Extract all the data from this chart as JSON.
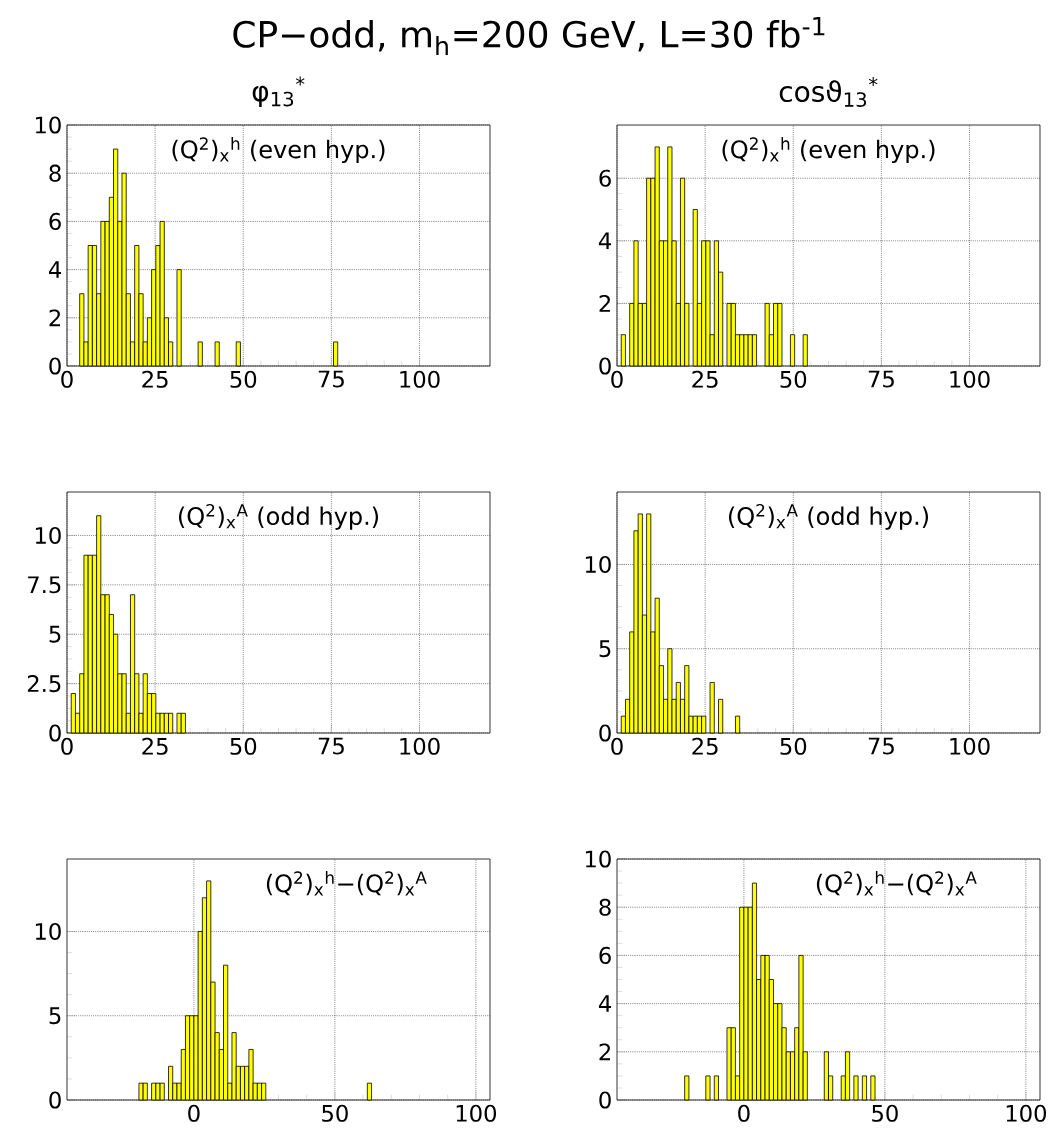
{
  "chart_data": [
    {
      "type": "histogram",
      "title": "CP−odd, m$_{h}$=200 GeV, L=30 fb$^{-1}$",
      "subtitle": "φ$_{13}$$^{*}$",
      "annotations": [
        "(Q$^{2}$)$_{x}$$^{h}$ (even hyp.)"
      ],
      "color": "#ffff00",
      "grid": true,
      "bins": [
        0,
        1.2,
        2.4,
        3.6,
        4.8,
        6,
        7.2,
        8.4,
        9.6,
        10.8,
        12,
        13.2,
        14.4,
        15.6,
        16.8,
        18,
        19.2,
        20.4,
        21.6,
        22.8,
        24,
        25.2,
        26.4,
        27.6,
        28.8,
        30,
        31.2,
        32.4,
        33.6,
        34.8,
        36,
        37.2,
        38.4,
        39.6,
        40.8,
        42,
        43.2,
        44.4,
        45.6,
        46.8,
        48,
        49.2,
        50.4,
        51.6,
        52.8,
        54,
        55.2,
        56.4,
        57.6,
        58.8,
        60,
        61.2,
        62.4,
        63.6,
        64.8,
        66,
        67.2,
        68.4,
        69.6,
        70.8,
        72,
        73.2,
        74.4,
        75.6,
        76.8
      ],
      "values": [
        0,
        0,
        0,
        3,
        1,
        5,
        5,
        3,
        6,
        6,
        7,
        9,
        6,
        8,
        3,
        1,
        5,
        3,
        1,
        2,
        4,
        5,
        6,
        2,
        1,
        0,
        4,
        0,
        0,
        0,
        0,
        1,
        0,
        0,
        0,
        1,
        0,
        0,
        0,
        0,
        1,
        0,
        0,
        0,
        0,
        0,
        0,
        0,
        0,
        0,
        0,
        0,
        0,
        0,
        0,
        0,
        0,
        0,
        0,
        0,
        0,
        0,
        0,
        1
      ],
      "xlim": [
        0,
        120
      ],
      "ylim": [
        0,
        10
      ],
      "xticks": [
        0,
        25,
        50,
        75,
        100
      ],
      "yticks": [
        0,
        2,
        4,
        6,
        8,
        10
      ]
    },
    {
      "type": "histogram",
      "subtitle": "cosϑ$_{13}$$^{*}$",
      "annotations": [
        "(Q$^{2}$)$_{x}$$^{h}$ (even hyp.)"
      ],
      "color": "#ffff00",
      "grid": true,
      "bins": [
        0,
        1.2,
        2.4,
        3.6,
        4.8,
        6,
        7.2,
        8.4,
        9.6,
        10.8,
        12,
        13.2,
        14.4,
        15.6,
        16.8,
        18,
        19.2,
        20.4,
        21.6,
        22.8,
        24,
        25.2,
        26.4,
        27.6,
        28.8,
        30,
        31.2,
        32.4,
        33.6,
        34.8,
        36,
        37.2,
        38.4,
        39.6,
        40.8,
        42,
        43.2,
        44.4,
        45.6,
        46.8,
        48,
        49.2,
        50.4,
        51.6,
        52.8,
        54
      ],
      "values": [
        0,
        1,
        0,
        2,
        4,
        2,
        2,
        6,
        6,
        7,
        4,
        4,
        7,
        4,
        2,
        6,
        2,
        0,
        5,
        2,
        4,
        4,
        1,
        4,
        3,
        0,
        2,
        2,
        1,
        1,
        1,
        1,
        1,
        0,
        0,
        2,
        1,
        2,
        2,
        0,
        0,
        1,
        0,
        0,
        1
      ],
      "xlim": [
        0,
        120
      ],
      "ylim": [
        0,
        7.7
      ],
      "xticks": [
        0,
        25,
        50,
        75,
        100
      ],
      "yticks": [
        0,
        2,
        4,
        6
      ]
    },
    {
      "type": "histogram",
      "annotations": [
        "(Q$^{2}$)$_{x}$$^{A}$ (odd hyp.)"
      ],
      "color": "#ffff00",
      "grid": true,
      "bins": [
        0,
        1.2,
        2.4,
        3.6,
        4.8,
        6,
        7.2,
        8.4,
        9.6,
        10.8,
        12,
        13.2,
        14.4,
        15.6,
        16.8,
        18,
        19.2,
        20.4,
        21.6,
        22.8,
        24,
        25.2,
        26.4,
        27.6,
        28.8,
        30,
        31.2,
        32.4,
        33.6
      ],
      "values": [
        0,
        2,
        1,
        3,
        9,
        9,
        9,
        11,
        7,
        7,
        6,
        5,
        3,
        3,
        1,
        7,
        3,
        1,
        3,
        2,
        2,
        1,
        1,
        1,
        1,
        0,
        1,
        1
      ],
      "xlim": [
        0,
        120
      ],
      "ylim": [
        0,
        12.2
      ],
      "xticks": [
        0,
        25,
        50,
        75,
        100
      ],
      "yticks": [
        0,
        2.5,
        5,
        7.5,
        10
      ]
    },
    {
      "type": "histogram",
      "annotations": [
        "(Q$^{2}$)$_{x}$$^{A}$ (odd hyp.)"
      ],
      "color": "#ffff00",
      "grid": true,
      "bins": [
        0,
        1.2,
        2.4,
        3.6,
        4.8,
        6,
        7.2,
        8.4,
        9.6,
        10.8,
        12,
        13.2,
        14.4,
        15.6,
        16.8,
        18,
        19.2,
        20.4,
        21.6,
        22.8,
        24,
        25.2,
        26.4,
        27.6,
        28.8,
        30,
        31.2,
        32.4,
        33.6,
        34.8
      ],
      "values": [
        0,
        1,
        2,
        6,
        12,
        13,
        7,
        13,
        6,
        8,
        4,
        2,
        5,
        2,
        3,
        2,
        4,
        1,
        1,
        1,
        1,
        0,
        3,
        0,
        2,
        0,
        0,
        0,
        1
      ],
      "xlim": [
        0,
        120
      ],
      "ylim": [
        0,
        14.3
      ],
      "xticks": [
        0,
        25,
        50,
        75,
        100
      ],
      "yticks": [
        0,
        5,
        10
      ]
    },
    {
      "type": "histogram",
      "annotations": [
        "(Q$^{2}$)$_{x}$$^{h}$−(Q$^{2}$)$_{x}$$^{A}$"
      ],
      "color": "#ffff00",
      "grid": true,
      "bins": [
        -45,
        -43.5,
        -42,
        -40.5,
        -39,
        -37.5,
        -36,
        -34.5,
        -33,
        -31.5,
        -30,
        -28.5,
        -27,
        -25.5,
        -24,
        -22.5,
        -21,
        -19.5,
        -18,
        -16.5,
        -15,
        -13.5,
        -12,
        -10.5,
        -9,
        -7.5,
        -6,
        -4.5,
        -3,
        -1.5,
        0,
        1.5,
        3,
        4.5,
        6,
        7.5,
        9,
        10.5,
        12,
        13.5,
        15,
        16.5,
        18,
        19.5,
        21,
        22.5,
        24,
        25.5,
        27,
        28.5,
        30,
        31.5,
        33,
        34.5,
        36,
        37.5,
        39,
        40.5,
        42,
        43.5,
        45,
        46.5,
        48,
        49.5,
        51,
        52.5,
        54,
        55.5,
        57,
        58.5,
        60,
        61.5,
        63
      ],
      "values": [
        0,
        0,
        0,
        0,
        0,
        0,
        0,
        0,
        0,
        0,
        0,
        0,
        0,
        0,
        0,
        0,
        0,
        1,
        1,
        0,
        1,
        1,
        1,
        0,
        2,
        1,
        1,
        3,
        5,
        5,
        5,
        10,
        12,
        13,
        7,
        4,
        3,
        8,
        1,
        4,
        2,
        2,
        2,
        3,
        1,
        1,
        1,
        0,
        0,
        0,
        0,
        0,
        0,
        0,
        0,
        0,
        0,
        0,
        0,
        0,
        0,
        0,
        0,
        0,
        0,
        0,
        0,
        0,
        0,
        0,
        0,
        1
      ],
      "xlim": [
        -45,
        105
      ],
      "ylim": [
        0,
        14.3
      ],
      "xticks": [
        0,
        50,
        100
      ],
      "yticks": [
        0,
        5,
        10
      ]
    },
    {
      "type": "histogram",
      "annotations": [
        "(Q$^{2}$)$_{x}$$^{h}$−(Q$^{2}$)$_{x}$$^{A}$"
      ],
      "color": "#ffff00",
      "grid": true,
      "bins": [
        -45,
        -43.5,
        -42,
        -40.5,
        -39,
        -37.5,
        -36,
        -34.5,
        -33,
        -31.5,
        -30,
        -28.5,
        -27,
        -25.5,
        -24,
        -22.5,
        -21,
        -19.5,
        -18,
        -16.5,
        -15,
        -13.5,
        -12,
        -10.5,
        -9,
        -7.5,
        -6,
        -4.5,
        -3,
        -1.5,
        0,
        1.5,
        3,
        4.5,
        6,
        7.5,
        9,
        10.5,
        12,
        13.5,
        15,
        16.5,
        18,
        19.5,
        21,
        22.5,
        24,
        25.5,
        27,
        28.5,
        30,
        31.5,
        33,
        34.5,
        36,
        37.5,
        39,
        40.5,
        42,
        43.5,
        45,
        46.5
      ],
      "values": [
        0,
        0,
        0,
        0,
        0,
        0,
        0,
        0,
        0,
        0,
        0,
        0,
        0,
        0,
        0,
        0,
        1,
        0,
        0,
        0,
        0,
        1,
        0,
        1,
        0,
        0,
        3,
        3,
        1,
        8,
        8,
        8,
        9,
        5,
        6,
        6,
        5,
        4,
        4,
        3,
        2,
        2,
        3,
        6,
        2,
        0,
        0,
        0,
        0,
        2,
        1,
        0,
        0,
        1,
        2,
        0,
        1,
        0,
        1,
        0,
        1
      ],
      "xlim": [
        -45,
        105
      ],
      "ylim": [
        0,
        10
      ],
      "xticks": [
        0,
        50,
        100
      ],
      "yticks": [
        0,
        2,
        4,
        6,
        8,
        10
      ]
    }
  ]
}
